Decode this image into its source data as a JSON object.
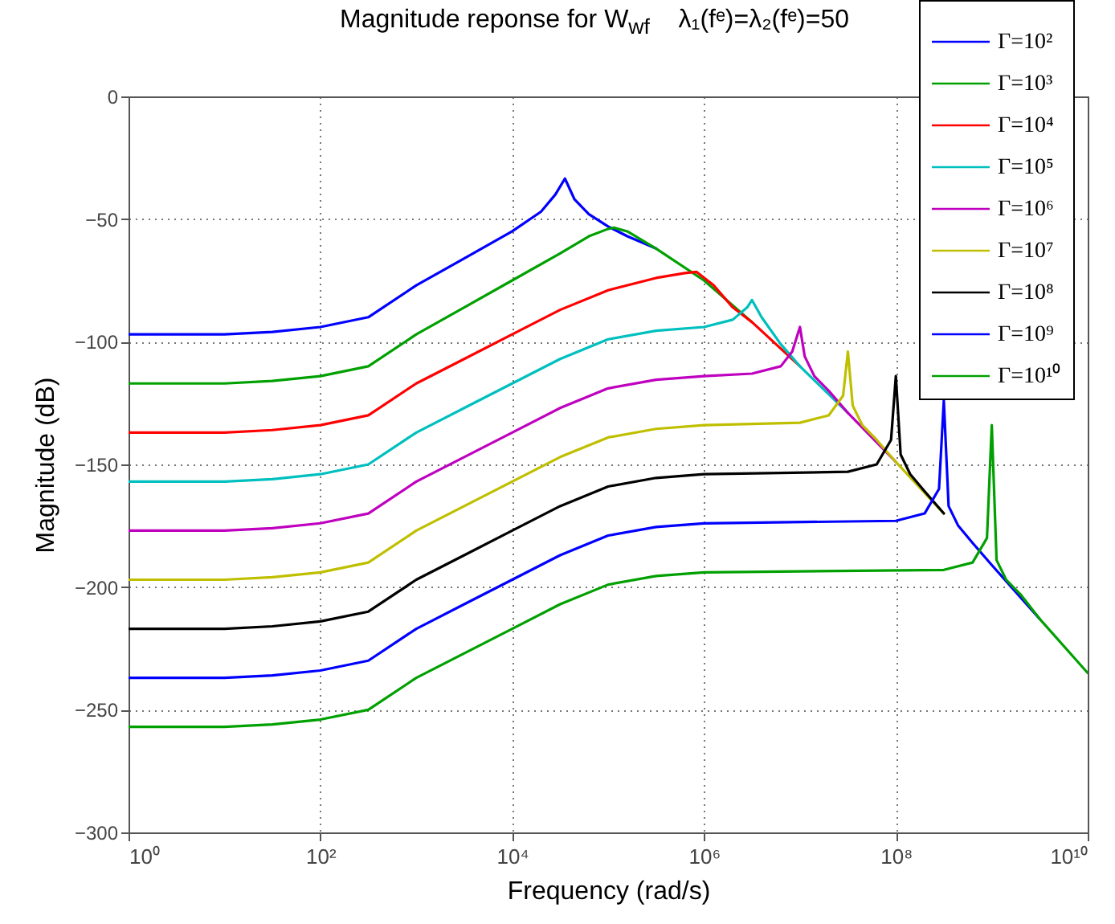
{
  "chart_data": {
    "type": "line",
    "title": "Magnitude reponse for W$_{wf}$    λ₁(fᵉ)=λ₂(fᵉ)=50",
    "xlabel": "Frequency  (rad/s)",
    "ylabel": "Magnitude (dB)",
    "log": "x",
    "grid": true,
    "legend": "top right",
    "xlim": [
      1,
      10000000000.0
    ],
    "xticks": [
      {
        "value": 1,
        "label": "10⁰"
      },
      {
        "value": 100,
        "label": "10²"
      },
      {
        "value": 10000.0,
        "label": "10⁴"
      },
      {
        "value": 1000000.0,
        "label": "10⁶"
      },
      {
        "value": 100000000.0,
        "label": "10⁸"
      },
      {
        "value": 10000000000.0,
        "label": "10¹⁰"
      }
    ],
    "ylim": [
      -300,
      0
    ],
    "yticks": [
      -300,
      -250,
      -200,
      -150,
      -100,
      -50,
      0
    ],
    "series": [
      {
        "name": "Γ=10²",
        "color": "#0000ff",
        "x": [
          1,
          10,
          31.62,
          100,
          316.2,
          1000,
          3162,
          10000.0,
          19953,
          28184,
          35481,
          44668,
          63096,
          100000.0,
          158489,
          316228
        ],
        "values": [
          -97,
          -97,
          -96,
          -94,
          -90,
          -77,
          -66,
          -55,
          -47,
          -40,
          -33.5,
          -42,
          -48,
          -53,
          -57,
          -62
        ]
      },
      {
        "name": "Γ=10³",
        "color": "#00a000",
        "x": [
          1,
          10,
          31.62,
          100,
          316.2,
          1000,
          3162,
          10000.0,
          31623,
          63096,
          100000.0,
          114815,
          158489,
          316228,
          1000000.0,
          3162278
        ],
        "values": [
          -117,
          -117,
          -116,
          -114,
          -110,
          -97,
          -86,
          -75,
          -64,
          -57,
          -54,
          -53.5,
          -55,
          -62,
          -75,
          -92
        ]
      },
      {
        "name": "Γ=10⁴",
        "color": "#ff0000",
        "x": [
          1,
          10,
          31.62,
          100,
          316.2,
          1000,
          3162,
          10000.0,
          31623,
          100000.0,
          316228,
          630957,
          831764,
          1258925,
          1995262,
          3162278,
          10000000.0
        ],
        "values": [
          -137,
          -137,
          -136,
          -134,
          -130,
          -117,
          -107,
          -97,
          -87,
          -79,
          -74,
          -72,
          -71.5,
          -77,
          -86,
          -92,
          -110
        ]
      },
      {
        "name": "Γ=10⁵",
        "color": "#00bfbf",
        "x": [
          1,
          10,
          31.62,
          100,
          316.2,
          1000,
          3162,
          10000.0,
          31623,
          100000.0,
          316228,
          1000000.0,
          1995262,
          2818383,
          3162278,
          3981072,
          6309573,
          10000000.0,
          31622777
        ],
        "values": [
          -157,
          -157,
          -156,
          -154,
          -150,
          -137,
          -127,
          -117,
          -107,
          -99,
          -95.5,
          -94,
          -91,
          -86,
          -83,
          -90,
          -101,
          -110,
          -129
        ]
      },
      {
        "name": "Γ=10⁶",
        "color": "#bf00bf",
        "x": [
          1,
          10,
          31.62,
          100,
          316.2,
          1000,
          3162,
          10000.0,
          31623,
          100000.0,
          316228,
          1000000.0,
          3162278,
          6309573,
          8317638,
          10000000.0,
          11220185,
          14125375,
          19952623,
          31622777,
          100000000.0
        ],
        "values": [
          -177,
          -177,
          -176,
          -174,
          -170,
          -157,
          -147,
          -137,
          -127,
          -119,
          -115.5,
          -114,
          -113,
          -110,
          -104,
          -94,
          -106,
          -114,
          -120,
          -129,
          -149
        ]
      },
      {
        "name": "Γ=10⁷",
        "color": "#bfbf00",
        "x": [
          1,
          10,
          31.62,
          100,
          316.2,
          1000,
          3162,
          10000.0,
          31623,
          100000.0,
          316228,
          1000000.0,
          10000000.0,
          19952623,
          28183829,
          31622777,
          35481339,
          44668359,
          63095734,
          100000000.0,
          316227766
        ],
        "values": [
          -197,
          -197,
          -196,
          -194,
          -190,
          -177,
          -167,
          -157,
          -147,
          -139,
          -135.5,
          -134,
          -133,
          -130,
          -122,
          -104,
          -126,
          -134,
          -140,
          -149,
          -170
        ]
      },
      {
        "name": "Γ=10⁸",
        "color": "#000000",
        "x": [
          1,
          10,
          31.62,
          100,
          316.2,
          1000,
          3162,
          10000.0,
          31623,
          100000.0,
          316228,
          1000000.0,
          31622777,
          63095734,
          89125094,
          100000000.0,
          112201845,
          141253754,
          199526231,
          316227766
        ],
        "values": [
          -217,
          -217,
          -216,
          -214,
          -210,
          -197,
          -187,
          -177,
          -167,
          -159,
          -155.5,
          -154,
          -153,
          -150,
          -140,
          -114,
          -146,
          -154,
          -161,
          -170
        ]
      },
      {
        "name": "Γ=10⁹",
        "color": "#0000ff",
        "x": [
          1,
          10,
          31.62,
          100,
          316.2,
          1000,
          3162,
          10000.0,
          31623,
          100000.0,
          316228,
          1000000.0,
          100000000.0,
          199526231,
          281838293,
          316227766,
          354813389,
          446683592,
          630957344,
          1000000000.0,
          3162300000.0
        ],
        "values": [
          -237,
          -237,
          -236,
          -234,
          -230,
          -217,
          -207,
          -197,
          -187,
          -179,
          -175.5,
          -174,
          -173,
          -170,
          -160,
          -124,
          -167,
          -175,
          -182,
          -191,
          -213
        ]
      },
      {
        "name": "Γ=10¹⁰",
        "color": "#00a000",
        "x": [
          1,
          10,
          31.62,
          100,
          316.2,
          1000,
          3162,
          10000.0,
          31623,
          100000.0,
          316228,
          1000000.0,
          316227766,
          630957344,
          891250938,
          1000000000.0,
          1122000000.0,
          1412500000.0,
          1995300000.0,
          3162300000.0,
          10000000000.0
        ],
        "values": [
          -257,
          -257,
          -256,
          -254,
          -250,
          -237,
          -227,
          -217,
          -207,
          -199,
          -195.5,
          -194,
          -193,
          -190,
          -180,
          -134,
          -189,
          -197,
          -203,
          -213,
          -235
        ]
      }
    ]
  }
}
